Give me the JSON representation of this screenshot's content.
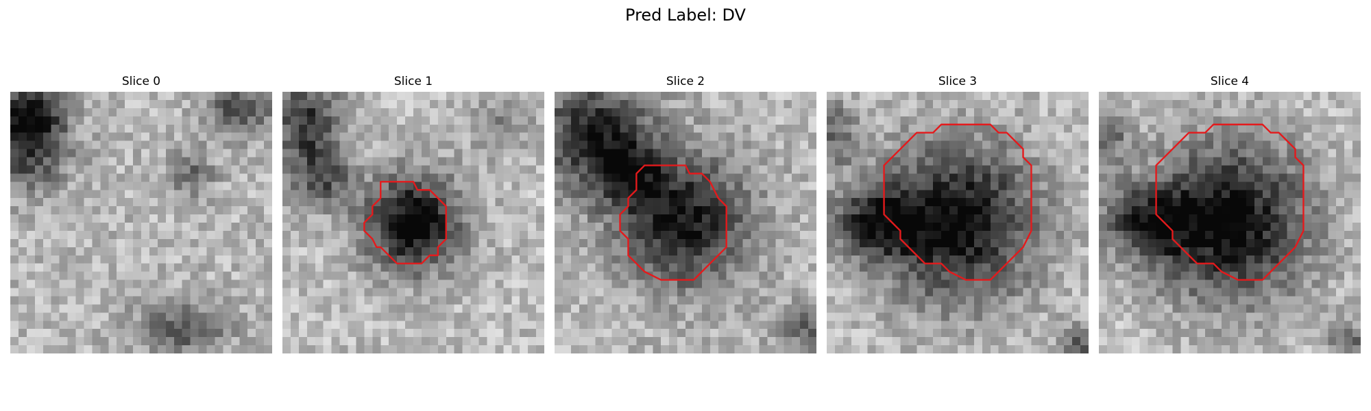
{
  "figure": {
    "title": "Pred Label: DV"
  },
  "panels": [
    {
      "title": "Slice 0",
      "has_contour": false
    },
    {
      "title": "Slice 1",
      "has_contour": true
    },
    {
      "title": "Slice 2",
      "has_contour": true
    },
    {
      "title": "Slice 3",
      "has_contour": true
    },
    {
      "title": "Slice 4",
      "has_contour": true
    }
  ],
  "colors": {
    "contour": "#e41a1c",
    "colormap": "gray"
  }
}
